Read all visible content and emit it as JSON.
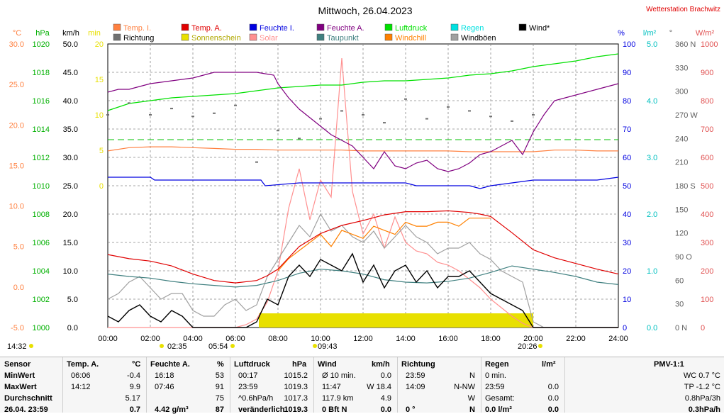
{
  "chart_data": {
    "type": "line",
    "title": "Mittwoch, 26.04.2023",
    "station": "Wetterstation Brachwitz",
    "x_ticks": [
      "00:00",
      "02:00",
      "04:00",
      "06:00",
      "08:00",
      "10:00",
      "12:00",
      "14:00",
      "16:00",
      "18:00",
      "20:00",
      "22:00",
      "24:00"
    ],
    "legend": [
      {
        "label": "Temp. I.",
        "color": "#ff8040"
      },
      {
        "label": "Richtung",
        "color": "#707070"
      },
      {
        "label": "Temp. A.",
        "color": "#e00000"
      },
      {
        "label": "Sonnenschein",
        "color": "#e8e000"
      },
      {
        "label": "Feuchte I.",
        "color": "#0000e0"
      },
      {
        "label": "Solar",
        "color": "#ff9090"
      },
      {
        "label": "Feuchte A.",
        "color": "#800080"
      },
      {
        "label": "Taupunkt",
        "color": "#408080"
      },
      {
        "label": "Luftdruck",
        "color": "#00e000"
      },
      {
        "label": "Windchill",
        "color": "#ff8000"
      },
      {
        "label": "Regen",
        "color": "#00e0e0"
      },
      {
        "label": "Windböen",
        "color": "#a0a0a0"
      },
      {
        "label": "Wind*",
        "color": "#000000"
      }
    ],
    "axes": {
      "temp": {
        "unit": "°C",
        "ticks": [
          "30.0",
          "25.0",
          "20.0",
          "15.0",
          "10.0",
          "5.0",
          "0.0",
          "-5.0"
        ],
        "color": "#ff8040"
      },
      "pressure": {
        "unit": "hPa",
        "ticks": [
          "1020",
          "1018",
          "1016",
          "1014",
          "1012",
          "1010",
          "1008",
          "1006",
          "1004",
          "1002",
          "1000"
        ],
        "color": "#00b000"
      },
      "wind": {
        "unit": "km/h",
        "ticks": [
          "50.0",
          "45.0",
          "40.0",
          "35.0",
          "30.0",
          "25.0",
          "20.0",
          "15.0",
          "10.0",
          "5.0",
          "0.0"
        ],
        "color": "#000000"
      },
      "sunshine": {
        "unit": "min",
        "ticks": [
          "20",
          "15",
          "10",
          "5",
          "0"
        ],
        "color": "#e8e000"
      },
      "humidity": {
        "unit": "%",
        "ticks": [
          "100",
          "90",
          "80",
          "70",
          "60",
          "50",
          "40",
          "30",
          "20",
          "10",
          "0"
        ],
        "color": "#0000e0"
      },
      "rain": {
        "unit": "l/m²",
        "ticks": [
          "5.0",
          "4.0",
          "3.0",
          "2.0",
          "1.0",
          "0.0"
        ],
        "color": "#00c0c0"
      },
      "direction": {
        "unit": "°",
        "ticks": [
          "360 N",
          "330",
          "300",
          "270 W",
          "240",
          "210",
          "180 S",
          "150",
          "120",
          "90 O",
          "60",
          "30",
          "0 N"
        ],
        "color": "#606060"
      },
      "solar": {
        "unit": "W/m²",
        "ticks": [
          "1000",
          "900",
          "800",
          "700",
          "600",
          "500",
          "400",
          "300",
          "200",
          "100",
          "0"
        ],
        "color": "#e05050"
      }
    },
    "series": [
      {
        "name": "Temp. I.",
        "axis": "temp",
        "color": "#ff8040",
        "x": [
          0,
          1,
          2,
          3,
          4,
          5,
          6,
          7,
          8,
          9,
          10,
          11,
          12,
          13,
          14,
          15,
          16,
          17,
          18,
          19,
          20,
          21,
          22,
          23,
          24
        ],
        "y": [
          16.8,
          17.2,
          17.3,
          17.3,
          17.2,
          17.1,
          17.0,
          17.0,
          16.9,
          16.9,
          16.9,
          16.9,
          16.8,
          16.8,
          16.8,
          16.8,
          16.8,
          16.7,
          16.7,
          16.7,
          16.7,
          16.9,
          16.9,
          16.8,
          16.8
        ]
      },
      {
        "name": "Temp. A.",
        "axis": "temp",
        "color": "#e00000",
        "x": [
          0,
          1,
          2,
          3,
          4,
          5,
          6,
          7,
          7.5,
          8,
          9,
          10,
          11,
          12,
          13,
          14,
          15,
          16,
          17,
          17.5,
          18,
          19,
          20,
          21,
          22,
          23,
          24
        ],
        "y": [
          4.0,
          3.5,
          3.2,
          2.6,
          1.6,
          0.8,
          0.5,
          0.8,
          1.4,
          2.2,
          5.0,
          6.6,
          7.6,
          8.2,
          8.9,
          9.3,
          9.3,
          9.4,
          9.2,
          9.0,
          8.7,
          6.7,
          4.6,
          3.6,
          2.9,
          2.2,
          1.6
        ]
      },
      {
        "name": "Taupunkt",
        "axis": "temp",
        "color": "#408080",
        "x": [
          0,
          1,
          2,
          3,
          4,
          5,
          6,
          7,
          8,
          9,
          10,
          11,
          12,
          13,
          14,
          15,
          16,
          17,
          18,
          19,
          20,
          21,
          22,
          23,
          24
        ],
        "y": [
          1.6,
          1.3,
          1.1,
          0.7,
          0.4,
          0.2,
          0.0,
          0.2,
          0.8,
          1.7,
          2.2,
          2.0,
          1.6,
          0.9,
          0.6,
          0.5,
          0.7,
          1.1,
          1.8,
          2.6,
          2.2,
          1.8,
          1.3,
          0.6,
          0.3
        ]
      },
      {
        "name": "Luftdruck",
        "axis": "pressure",
        "color": "#00e000",
        "x": [
          0,
          1,
          2,
          3,
          4,
          5,
          6,
          7,
          8,
          9,
          10,
          11,
          12,
          13,
          14,
          15,
          16,
          17,
          18,
          19,
          20,
          21,
          22,
          23,
          24
        ],
        "y": [
          1015.3,
          1015.8,
          1016.0,
          1016.2,
          1016.3,
          1016.4,
          1016.5,
          1016.7,
          1016.9,
          1017.0,
          1017.1,
          1017.1,
          1017.3,
          1017.4,
          1017.4,
          1017.5,
          1017.6,
          1017.8,
          1017.9,
          1018.1,
          1018.4,
          1018.6,
          1018.8,
          1019.1,
          1019.3
        ]
      },
      {
        "name": "Feuchte A.",
        "axis": "humidity",
        "color": "#800080",
        "x": [
          0,
          0.5,
          1,
          2,
          3,
          4,
          5,
          6,
          7,
          7.8,
          8,
          8.5,
          9,
          9.5,
          10,
          10.5,
          11,
          11.5,
          12,
          12.5,
          13,
          13.5,
          14,
          14.5,
          15,
          15.5,
          16,
          16.5,
          17,
          17.5,
          18,
          18.5,
          19,
          19.5,
          20,
          20.5,
          21,
          22,
          23,
          24
        ],
        "y": [
          83,
          84,
          84,
          86,
          87,
          88,
          90,
          90,
          90,
          89,
          86,
          81,
          77,
          74,
          71,
          68,
          66,
          64,
          60,
          56,
          62,
          57,
          56,
          58,
          59,
          56,
          55,
          56,
          58,
          61,
          62,
          64,
          66,
          61,
          69,
          75,
          80,
          82,
          84,
          86
        ]
      },
      {
        "name": "Feuchte I.",
        "axis": "humidity",
        "color": "#0000e0",
        "x": [
          0,
          2,
          2.2,
          4,
          6,
          7.2,
          7.4,
          9,
          12,
          14,
          14.5,
          15,
          17,
          17.5,
          18,
          19,
          20,
          21,
          23,
          24
        ],
        "y": [
          53,
          53,
          52,
          52,
          52,
          52,
          50,
          51,
          51,
          51,
          50,
          50,
          50,
          49,
          50,
          51,
          52,
          52,
          52,
          53
        ]
      },
      {
        "name": "Wind*",
        "axis": "wind",
        "color": "#000000",
        "x": [
          0,
          0.5,
          1,
          1.5,
          2,
          2.5,
          3,
          3.5,
          4,
          4.5,
          5,
          5.5,
          6,
          6.5,
          7,
          7.5,
          8,
          8.5,
          9,
          9.5,
          10,
          10.5,
          11,
          11.5,
          12,
          12.5,
          13,
          13.5,
          14,
          14.5,
          15,
          15.5,
          16,
          16.5,
          17,
          17.5,
          18,
          18.5,
          19,
          19.5,
          20,
          20.5,
          21,
          22,
          23,
          24
        ],
        "y": [
          2,
          1,
          3,
          4,
          2,
          1,
          3,
          2,
          0,
          0,
          0,
          0,
          0,
          0,
          1,
          5,
          4,
          9,
          11,
          9,
          12,
          11,
          10,
          13,
          8,
          11,
          7,
          10,
          11,
          8,
          10,
          7,
          9,
          9,
          10,
          8,
          6,
          5,
          4,
          3,
          0,
          0,
          0,
          0,
          0,
          0
        ]
      },
      {
        "name": "Windböen",
        "axis": "wind",
        "color": "#a0a0a0",
        "x": [
          0,
          0.5,
          1,
          1.5,
          2,
          2.5,
          3,
          3.5,
          4,
          4.5,
          5,
          5.5,
          6,
          6.5,
          7,
          7.5,
          8,
          8.5,
          9,
          9.5,
          10,
          10.5,
          11,
          11.5,
          12,
          12.5,
          13,
          13.5,
          14,
          14.5,
          15,
          15.5,
          16,
          16.5,
          17,
          17.5,
          18,
          18.5,
          19,
          19.5,
          20,
          20.5,
          21,
          22,
          23,
          24
        ],
        "y": [
          5,
          6,
          8,
          9,
          7,
          5,
          6,
          6,
          3,
          2,
          2,
          4,
          5,
          3,
          4,
          9,
          12,
          15,
          18,
          16,
          20,
          17,
          18,
          16,
          15,
          17,
          14,
          16,
          18,
          16,
          15,
          13,
          14,
          14,
          15,
          13,
          12,
          10,
          9,
          8,
          1,
          0,
          0,
          0,
          0,
          0
        ]
      },
      {
        "name": "Windchill",
        "axis": "temp",
        "color": "#ff8000",
        "x": [
          8,
          8.5,
          9,
          9.5,
          10,
          10.5,
          11,
          11.5,
          12,
          12.5,
          13,
          13.5,
          14,
          14.5,
          15,
          15.5,
          16,
          16.5,
          17,
          17.5,
          18
        ],
        "y": [
          2,
          3.5,
          4.5,
          5.5,
          6.5,
          5,
          7,
          6.5,
          6,
          7.5,
          7,
          6.5,
          8,
          7.5,
          7.5,
          8,
          8,
          7.5,
          8.5,
          8.5,
          8.5
        ]
      },
      {
        "name": "Solar",
        "axis": "solar",
        "color": "#ff9090",
        "x": [
          0,
          6,
          6.5,
          7,
          7.5,
          8,
          8.5,
          9,
          9.5,
          10,
          10.5,
          11,
          11.5,
          12,
          12.5,
          13,
          13.5,
          14,
          14.5,
          15,
          15.5,
          16,
          16.5,
          17,
          17.5,
          18,
          18.5,
          19,
          19.5,
          20,
          24
        ],
        "y": [
          0,
          0,
          10,
          30,
          90,
          200,
          420,
          560,
          380,
          520,
          460,
          950,
          480,
          330,
          400,
          280,
          390,
          300,
          270,
          260,
          230,
          220,
          200,
          170,
          140,
          100,
          70,
          40,
          15,
          0,
          0
        ]
      },
      {
        "name": "Richtung",
        "axis": "direction",
        "color": "#707070",
        "x": [
          0,
          1,
          2,
          3,
          4,
          5,
          6,
          7,
          8,
          9,
          10,
          11,
          12,
          13,
          14,
          15,
          16,
          17,
          18,
          19,
          20
        ],
        "y": [
          270,
          285,
          270,
          278,
          268,
          272,
          282,
          210,
          250,
          240,
          265,
          275,
          270,
          260,
          290,
          265,
          280,
          275,
          268,
          262,
          270
        ]
      }
    ],
    "sunshine": {
      "axis": "sunshine",
      "color": "#e8e000",
      "x": [
        7.1,
        7.5,
        8,
        8.5,
        9,
        9.5,
        10,
        10.5,
        11,
        11.5,
        12,
        12.5,
        13,
        13.5,
        14,
        14.5,
        15,
        15.5,
        16,
        16.5,
        17,
        17.5,
        18,
        18.5,
        19,
        19.5
      ],
      "y": [
        1,
        1,
        1,
        1,
        1,
        1,
        1,
        1,
        1,
        1,
        1,
        1,
        1,
        1,
        1,
        1,
        1,
        1,
        1,
        1,
        1,
        1,
        1,
        1,
        1,
        1
      ]
    },
    "markers": {
      "sunrise": "05:54",
      "sunset": "20:26",
      "moonrise": "09:43",
      "moonset": "02:35",
      "left_time": "14:32"
    }
  },
  "table": {
    "headers": {
      "sensor": "Sensor",
      "temp": "Temp. A.",
      "temp_unit": "°C",
      "hum": "Feuchte A.",
      "hum_unit": "%",
      "press": "Luftdruck",
      "press_unit": "hPa",
      "wind": "Wind",
      "wind_unit": "km/h",
      "dir": "Richtung",
      "rain": "Regen",
      "rain_unit": "l/m²",
      "pmv": "PMV-1:1"
    },
    "rows": [
      {
        "label": "MinWert",
        "temp_time": "06:06",
        "temp_val": "-0.4",
        "hum_time": "16:18",
        "hum_val": "53",
        "press_time": "00:17",
        "press_val": "1015.2",
        "wind_time": "Ø 10 min.",
        "wind_val": "0.0",
        "dir_time": "23:59",
        "dir_val": "N",
        "rain_time": "0 min.",
        "rain_val": "",
        "pmv": "WC 0.7 °C"
      },
      {
        "label": "MaxWert",
        "temp_time": "14:12",
        "temp_val": "9.9",
        "hum_time": "07:46",
        "hum_val": "91",
        "press_time": "23:59",
        "press_val": "1019.3",
        "wind_time": "11:47",
        "wind_val": "W 18.4",
        "dir_time": "14:09",
        "dir_val": "N-NW",
        "rain_time": "23:59",
        "rain_val": "0.0",
        "pmv": "TP -1.2 °C"
      },
      {
        "label": "Durchschnitt",
        "temp_time": "",
        "temp_val": "5.17",
        "hum_time": "",
        "hum_val": "75",
        "press_time": "^0.6hPa/h",
        "press_val": "1017.3",
        "wind_time": "117.9 km",
        "wind_val": "4.9",
        "dir_time": "",
        "dir_val": "W",
        "rain_time": "Gesamt:",
        "rain_val": "0.0",
        "pmv": "0.8hPa/3h"
      },
      {
        "label": "26.04. 23:59",
        "temp_time": "",
        "temp_val": "0.7",
        "hum_time": "4.42 g/m³",
        "hum_val": "87",
        "press_time": "veränderlich",
        "press_val": "1019.3",
        "wind_time": "0 Bft N",
        "wind_val": "0.0",
        "dir_time": "0 °",
        "dir_val": "N",
        "rain_time": "0.0 l/m²",
        "rain_val": "0.0",
        "pmv": "0.3hPa/h"
      }
    ]
  }
}
